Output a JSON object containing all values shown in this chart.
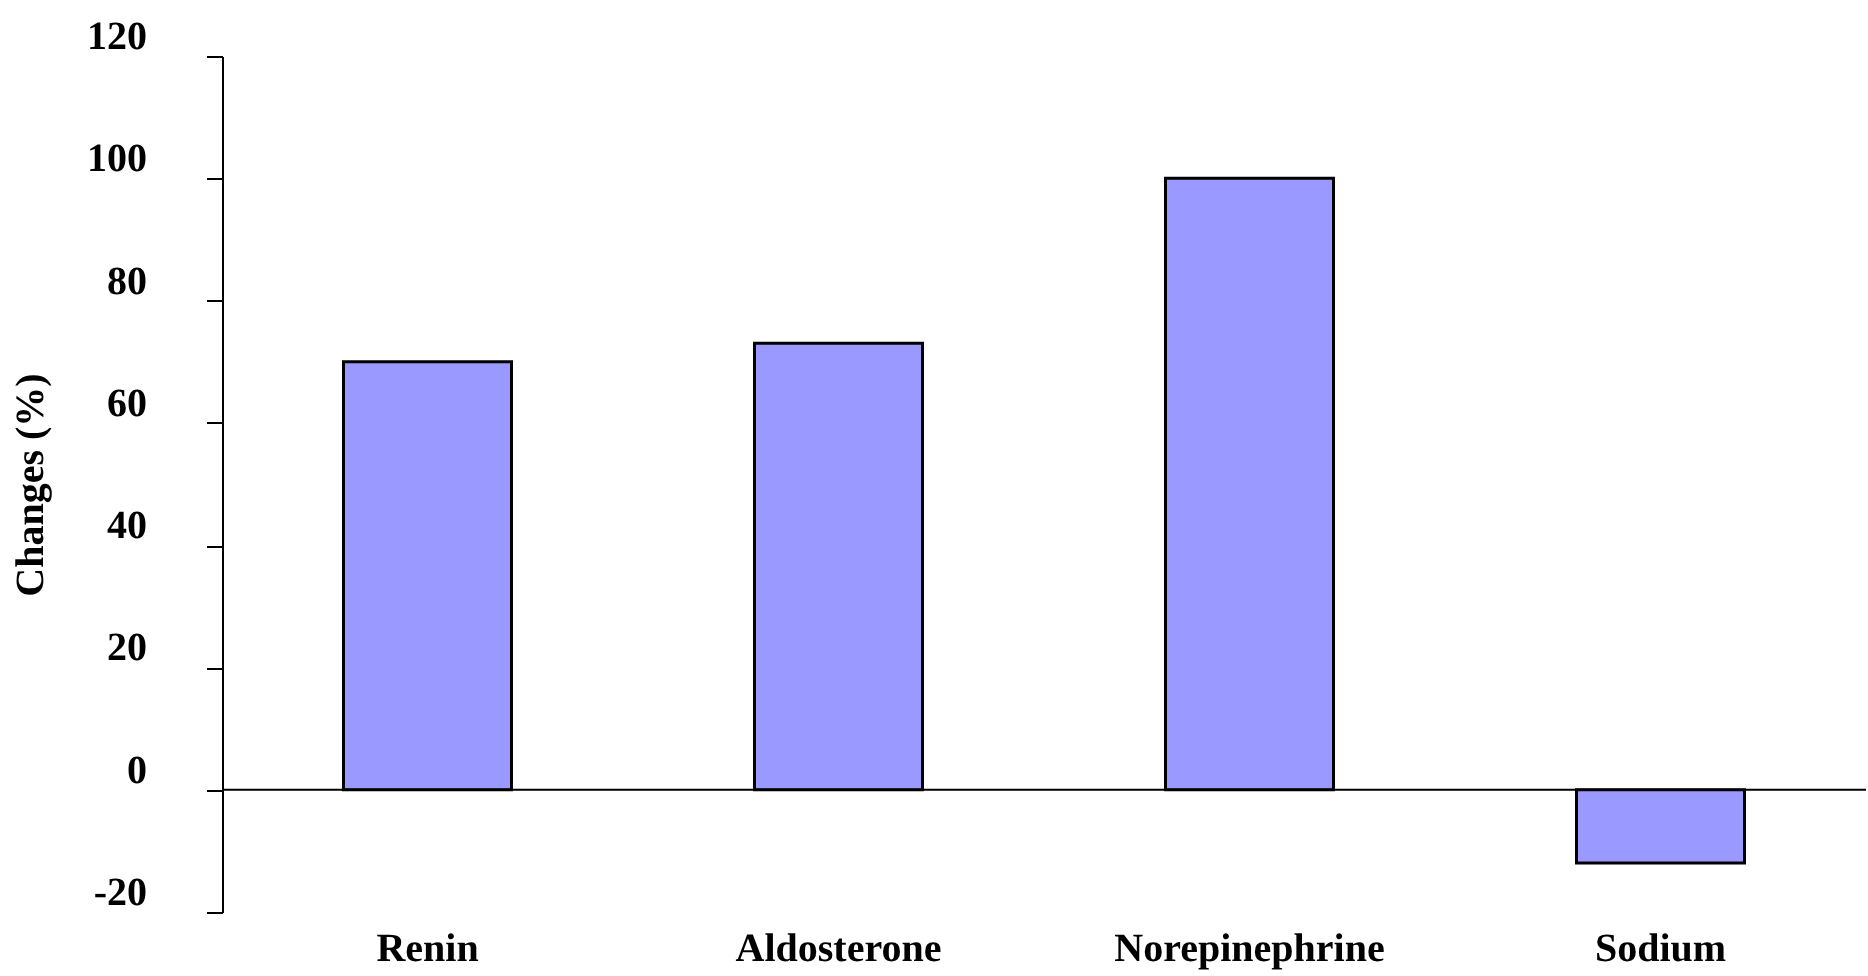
{
  "chart_data": {
    "type": "bar",
    "ylabel": "Changes (%)",
    "categories": [
      "Renin",
      "Aldosterone",
      "Norepinephrine",
      "Sodium"
    ],
    "values": [
      70,
      73,
      100,
      -12
    ],
    "color": "#9999ff",
    "ylim": [
      -20,
      120
    ],
    "yticks": [
      -20,
      0,
      20,
      40,
      60,
      80,
      100,
      120
    ]
  }
}
